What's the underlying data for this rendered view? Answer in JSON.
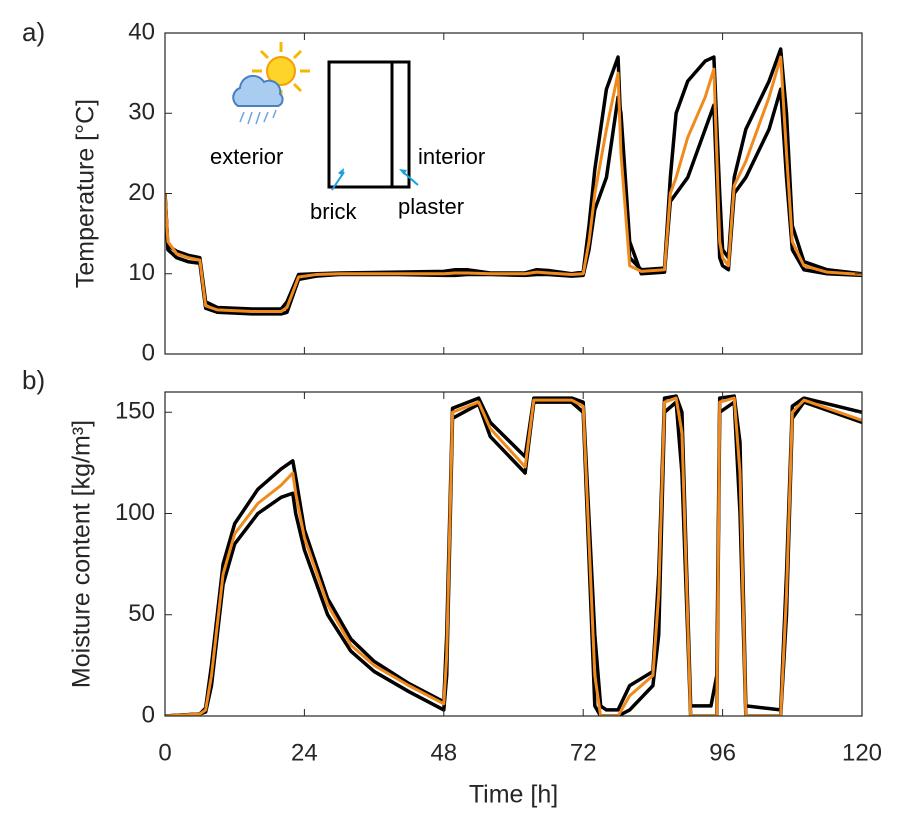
{
  "chart_data": [
    {
      "type": "line",
      "panel_label": "a)",
      "ylabel": "Temperature [°C]",
      "annotations": [
        "exterior",
        "interior",
        "brick",
        "plaster"
      ],
      "xlim": [
        0,
        120
      ],
      "xticks": [
        0,
        24,
        48,
        72,
        96,
        120
      ],
      "ylim": [
        0,
        40
      ],
      "yticks": [
        0,
        10,
        20,
        30,
        40
      ],
      "grid": false,
      "x": [
        0,
        0.5,
        2,
        4,
        6,
        7,
        9,
        15,
        20,
        21,
        23,
        26,
        30,
        40,
        48,
        50,
        52,
        56,
        62,
        64,
        66,
        70,
        72,
        73,
        74,
        76,
        78,
        78.5,
        80,
        82,
        86,
        87,
        88,
        90,
        93,
        94.5,
        95.5,
        96,
        97,
        98,
        100,
        104,
        106,
        107,
        108,
        110,
        114,
        120
      ],
      "series": [
        {
          "color": "#000000",
          "values": [
            20,
            13.5,
            12.8,
            12.3,
            12,
            6.5,
            5.8,
            5.6,
            5.6,
            6.5,
            9.9,
            10,
            10.1,
            10.2,
            10.3,
            10.5,
            10.5,
            10.1,
            10.1,
            10.5,
            10.4,
            10,
            10.2,
            16,
            23,
            33,
            37,
            28,
            12,
            10.5,
            10.7,
            22,
            30,
            34,
            36.5,
            37,
            20,
            13,
            12,
            22,
            28,
            34,
            38,
            30,
            16,
            11.5,
            10.5,
            10
          ]
        },
        {
          "color": "#000000",
          "values": [
            20,
            13,
            12,
            11.5,
            11.3,
            5.7,
            5.2,
            5,
            5,
            5.2,
            9.3,
            9.7,
            9.9,
            9.9,
            9.8,
            9.8,
            9.9,
            9.9,
            9.8,
            9.9,
            9.9,
            9.7,
            9.8,
            13,
            18,
            22,
            32,
            30,
            14,
            10,
            10.2,
            19,
            20,
            22,
            28,
            31,
            12,
            11,
            10.5,
            20,
            22,
            28,
            33,
            22,
            13,
            10.5,
            10,
            9.8
          ]
        },
        {
          "color": "#f08a1c",
          "values": [
            20,
            14,
            12.5,
            12,
            11.7,
            6,
            5.5,
            5.3,
            5.3,
            5.8,
            9.6,
            9.9,
            10,
            10,
            10,
            10.1,
            10.1,
            10,
            10,
            10.2,
            10.1,
            9.9,
            10,
            14,
            20,
            28,
            35,
            25,
            11,
            10.3,
            10.5,
            20,
            22,
            27,
            32,
            35.5,
            14,
            12,
            11,
            21,
            24,
            32,
            37,
            25,
            14,
            11,
            10.2,
            9.9
          ]
        }
      ]
    },
    {
      "type": "line",
      "panel_label": "b)",
      "ylabel": "Moisture content [kg/m³]",
      "xlabel": "Time [h]",
      "xlim": [
        0,
        120
      ],
      "xticks": [
        0,
        24,
        48,
        72,
        96,
        120
      ],
      "ylim": [
        0,
        160
      ],
      "yticks": [
        0,
        50,
        100,
        150
      ],
      "grid": false,
      "x": [
        0,
        6,
        7,
        8,
        10,
        12,
        16,
        20,
        22,
        22.5,
        24,
        28,
        32,
        36,
        42,
        48,
        48.5,
        49.5,
        54,
        56,
        62,
        63.5,
        70,
        72,
        74,
        75,
        76,
        78,
        80,
        84,
        85,
        86,
        88,
        89,
        90.5,
        94,
        95,
        95.5,
        98,
        99,
        100,
        106,
        107,
        108,
        110,
        120
      ],
      "series": [
        {
          "color": "#000000",
          "values": [
            0,
            1,
            4,
            25,
            75,
            95,
            112,
            122,
            126,
            118,
            92,
            58,
            38,
            27,
            16,
            7,
            40,
            152,
            157,
            145,
            128,
            157,
            157,
            155,
            40,
            5,
            3,
            3,
            15,
            22,
            70,
            157,
            158,
            150,
            5,
            5,
            20,
            157,
            158,
            135,
            5,
            3,
            70,
            153,
            157,
            150
          ]
        },
        {
          "color": "#000000",
          "values": [
            0,
            1,
            2,
            15,
            65,
            85,
            100,
            108,
            110,
            100,
            82,
            50,
            32,
            22,
            12,
            3,
            20,
            147,
            154,
            138,
            120,
            155,
            155,
            150,
            5,
            0,
            0,
            0,
            3,
            15,
            40,
            150,
            155,
            120,
            0,
            0,
            0,
            150,
            155,
            100,
            0,
            0,
            50,
            147,
            155,
            145
          ]
        },
        {
          "color": "#f08a1c",
          "values": [
            0,
            1,
            3,
            20,
            70,
            90,
            105,
            114,
            120,
            110,
            88,
            55,
            35,
            25,
            15,
            6,
            30,
            150,
            155,
            142,
            123,
            156,
            156,
            153,
            20,
            0,
            0,
            0,
            10,
            20,
            60,
            155,
            157,
            140,
            0,
            0,
            0,
            155,
            157,
            120,
            0,
            0,
            60,
            150,
            156,
            146
          ]
        }
      ]
    }
  ]
}
